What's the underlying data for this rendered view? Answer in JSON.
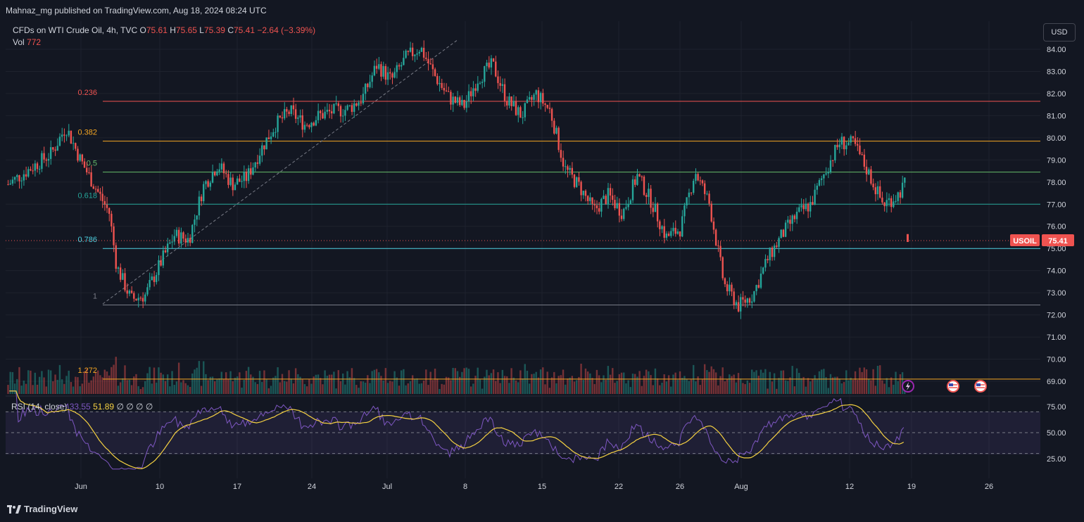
{
  "header": {
    "published": "Mahnaz_mg published on TradingView.com, Aug 18, 2024 08:24 UTC",
    "symbol_desc": "CFDs on WTI Crude Oil, 4h, TVC",
    "o_label": "O",
    "o_val": "75.61",
    "h_label": "H",
    "h_val": "75.65",
    "l_label": "L",
    "l_val": "75.39",
    "c_label": "C",
    "c_val": "75.41",
    "change": "−2.64 (−3.39%)",
    "vol_label": "Vol",
    "vol_val": "772"
  },
  "currency_button": "USD",
  "price_badge": {
    "symbol": "USOIL",
    "price": "75.41"
  },
  "rsi_legend": {
    "label": "RSI (14, close)",
    "v1": "33.55",
    "v2": "51.89",
    "rest": "∅ ∅ ∅ ∅"
  },
  "brand": "TradingView",
  "colors": {
    "up": "#26a69a",
    "down": "#ef5350",
    "rsi": "#7e57c2",
    "rsi_ma": "#f5d142",
    "background": "#131722"
  },
  "chart_data": {
    "type": "candlestick",
    "price_axis_ticks": [
      84.0,
      83.0,
      82.0,
      81.0,
      80.0,
      79.0,
      78.0,
      77.0,
      76.0,
      75.0,
      74.0,
      73.0,
      72.0,
      71.0,
      70.0,
      69.0
    ],
    "price_axis_labels": [
      "84.00",
      "83.00",
      "82.00",
      "81.00",
      "80.00",
      "79.00",
      "78.00",
      "77.00",
      "76.00",
      "75.00",
      "74.00",
      "73.00",
      "72.00",
      "71.00",
      "70.00",
      "69.00"
    ],
    "price_range": [
      68.5,
      84.6
    ],
    "time_axis_labels": [
      "Jun",
      "10",
      "17",
      "24",
      "Jul",
      "8",
      "15",
      "22",
      "26",
      "Aug",
      "12",
      "19",
      "26"
    ],
    "fib_levels": [
      {
        "label": "0.236",
        "price": 81.65,
        "color": "#ef5350"
      },
      {
        "label": "0.382",
        "price": 79.85,
        "color": "#f5a623"
      },
      {
        "label": "0.5",
        "price": 78.45,
        "color": "#66bb6a"
      },
      {
        "label": "0.618",
        "price": 77.0,
        "color": "#26a69a"
      },
      {
        "label": "0.786",
        "price": 75.0,
        "color": "#4dd0e1"
      },
      {
        "label": "1",
        "price": 72.45,
        "color": "#787b86"
      },
      {
        "label": "1.272",
        "price": 69.1,
        "color": "#f5a623"
      }
    ],
    "last_price": 75.41,
    "price_path": [
      [
        0,
        77.9
      ],
      [
        3,
        78.6
      ],
      [
        6,
        79.3
      ],
      [
        8,
        80.5
      ],
      [
        10,
        79.0
      ],
      [
        12,
        77.8
      ],
      [
        14,
        76.6
      ],
      [
        15,
        74.2
      ],
      [
        17,
        72.7
      ],
      [
        19,
        72.9
      ],
      [
        21,
        74.3
      ],
      [
        23,
        75.6
      ],
      [
        25,
        75.4
      ],
      [
        27,
        77.8
      ],
      [
        29,
        78.8
      ],
      [
        31,
        77.9
      ],
      [
        33,
        78.2
      ],
      [
        35,
        79.5
      ],
      [
        37,
        80.6
      ],
      [
        39,
        81.2
      ],
      [
        41,
        80.6
      ],
      [
        43,
        81.0
      ],
      [
        45,
        81.2
      ],
      [
        47,
        81.3
      ],
      [
        49,
        81.8
      ],
      [
        51,
        83.3
      ],
      [
        53,
        82.6
      ],
      [
        55,
        83.6
      ],
      [
        57,
        84.1
      ],
      [
        59,
        82.8
      ],
      [
        61,
        81.8
      ],
      [
        63,
        81.4
      ],
      [
        65,
        82.7
      ],
      [
        67,
        83.3
      ],
      [
        69,
        81.7
      ],
      [
        71,
        81.0
      ],
      [
        73,
        82.0
      ],
      [
        75,
        81.2
      ],
      [
        77,
        78.6
      ],
      [
        79,
        77.8
      ],
      [
        81,
        76.7
      ],
      [
        83,
        77.4
      ],
      [
        85,
        76.6
      ],
      [
        87,
        78.3
      ],
      [
        89,
        77.1
      ],
      [
        91,
        75.5
      ],
      [
        93,
        75.9
      ],
      [
        95,
        78.5
      ],
      [
        97,
        77.0
      ],
      [
        99,
        73.4
      ],
      [
        101,
        72.4
      ],
      [
        103,
        72.9
      ],
      [
        105,
        74.5
      ],
      [
        107,
        75.6
      ],
      [
        109,
        76.5
      ],
      [
        111,
        77.0
      ],
      [
        113,
        78.5
      ],
      [
        115,
        79.8
      ],
      [
        117,
        79.7
      ],
      [
        119,
        78.4
      ],
      [
        121,
        77.0
      ],
      [
        123,
        77.4
      ],
      [
        124,
        77.9
      ]
    ],
    "rsi": {
      "levels": [
        70,
        50,
        30
      ],
      "axis_labels": [
        "75.00",
        "50.00",
        "25.00"
      ],
      "current": 33.55,
      "ma_current": 51.89
    }
  }
}
